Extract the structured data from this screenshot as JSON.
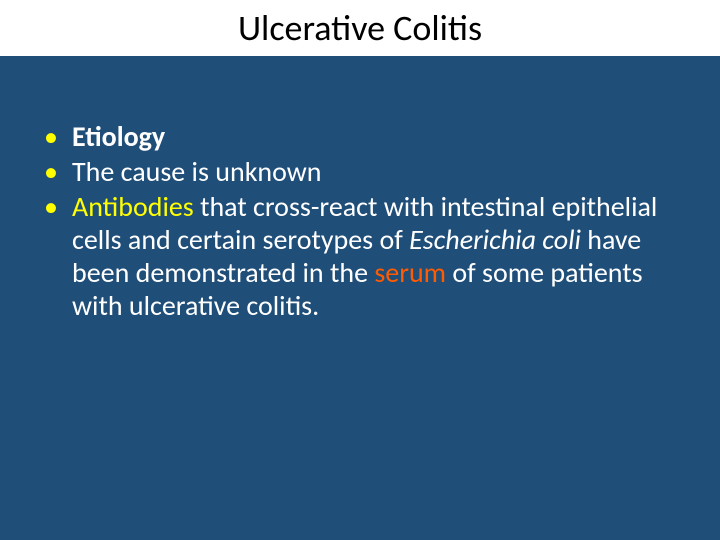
{
  "slide": {
    "background_color": "#1f4e79",
    "title_bar_bg": "#ffffff",
    "title": "Ulcerative Colitis",
    "title_color": "#000000",
    "title_fontsize": 36,
    "bullet_marker": "•",
    "bullet_marker_color": "#ffff00",
    "body_text_color": "#ffffff",
    "body_fontsize": 28,
    "highlight_yellow": "#ffff00",
    "highlight_orange": "#ff5b00",
    "bullets": [
      {
        "runs": [
          {
            "text": "Etiology",
            "bold": true
          }
        ]
      },
      {
        "runs": [
          {
            "text": "The cause is unknown"
          }
        ]
      },
      {
        "runs": [
          {
            "text": "Antibodies",
            "color": "yellow"
          },
          {
            "text": " that cross-react with intestinal epithelial cells and certain serotypes of "
          },
          {
            "text": "Escherichia coli",
            "italic": true
          },
          {
            "text": " have been demonstrated in the "
          },
          {
            "text": "serum",
            "color": "orange"
          },
          {
            "text": " of some patients with ulcerative colitis."
          }
        ]
      }
    ]
  }
}
